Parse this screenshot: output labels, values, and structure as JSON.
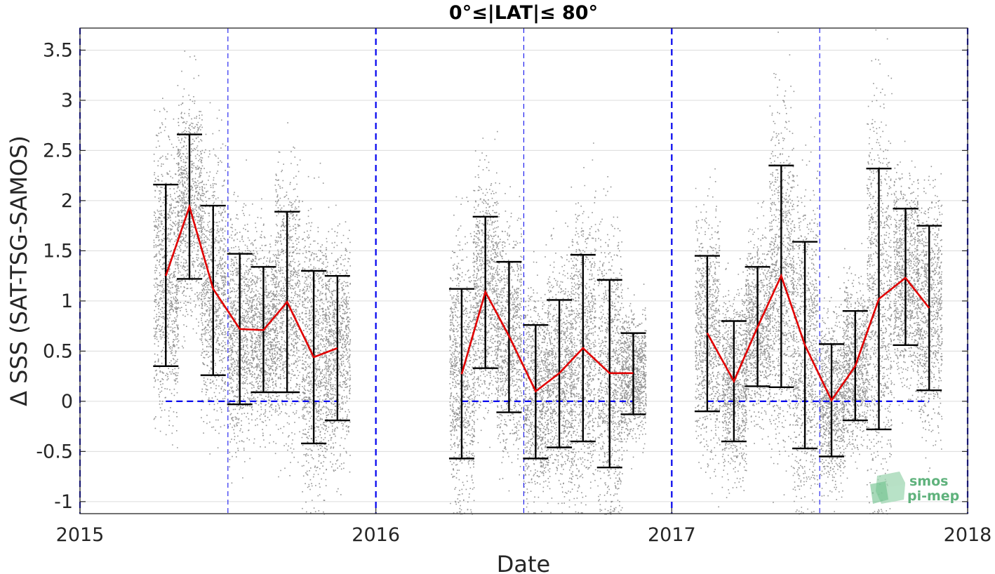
{
  "chart_data": {
    "type": "scatter",
    "title": "0°≤|LAT|≤ 80°",
    "xlabel": "Date",
    "ylabel": "Δ SSS (SAT-TSG-SAMOS)",
    "xlim": [
      2015.0,
      2018.0
    ],
    "ylim": [
      -1.12,
      3.72
    ],
    "x_ticks": [
      2015,
      2016,
      2017,
      2018
    ],
    "x_tick_labels": [
      "2015",
      "2016",
      "2017",
      "2018"
    ],
    "y_ticks": [
      -1,
      -0.5,
      0,
      0.5,
      1,
      1.5,
      2,
      2.5,
      3,
      3.5
    ],
    "y_tick_labels": [
      "-1",
      "-0.5",
      "0",
      "0.5",
      "1",
      "1.5",
      "2",
      "2.5",
      "3",
      "3.5"
    ],
    "grid": true,
    "colors": {
      "scatter": "#808080",
      "mean_line": "#e00000",
      "error_bars": "#000000",
      "zero_line": "#0000ee",
      "year_lines": "#0000ee",
      "grid": "#dcdcdc"
    },
    "year_boundaries": [
      2015.0,
      2016.0,
      2017.0,
      2018.0
    ],
    "mid_year_lines": [
      2015.5,
      2016.5,
      2017.5
    ],
    "zero_line_segments": [
      [
        2015.29,
        2015.87
      ],
      [
        2016.29,
        2016.87
      ],
      [
        2017.12,
        2017.87
      ]
    ],
    "series": [
      {
        "name": "2015",
        "x": [
          2015.29,
          2015.37,
          2015.45,
          2015.54,
          2015.62,
          2015.7,
          2015.79,
          2015.87
        ],
        "mean": [
          1.25,
          1.94,
          1.12,
          0.72,
          0.71,
          0.99,
          0.44,
          0.53
        ],
        "upper": [
          2.16,
          2.66,
          1.95,
          1.47,
          1.34,
          1.89,
          1.3,
          1.25
        ],
        "lower": [
          0.35,
          1.22,
          0.26,
          -0.03,
          0.09,
          0.09,
          -0.42,
          -0.19
        ]
      },
      {
        "name": "2016",
        "x": [
          2016.29,
          2016.37,
          2016.45,
          2016.54,
          2016.62,
          2016.7,
          2016.79,
          2016.87
        ],
        "mean": [
          0.27,
          1.09,
          0.65,
          0.1,
          0.28,
          0.53,
          0.28,
          0.28
        ],
        "upper": [
          1.12,
          1.84,
          1.39,
          0.76,
          1.01,
          1.46,
          1.21,
          0.68
        ],
        "lower": [
          -0.57,
          0.33,
          -0.11,
          -0.57,
          -0.46,
          -0.4,
          -0.66,
          -0.13
        ]
      },
      {
        "name": "2017",
        "x": [
          2017.12,
          2017.21,
          2017.29,
          2017.37,
          2017.45,
          2017.54,
          2017.62,
          2017.7,
          2017.79,
          2017.87
        ],
        "mean": [
          0.68,
          0.2,
          0.74,
          1.25,
          0.56,
          0.01,
          0.35,
          1.02,
          1.23,
          0.93
        ],
        "upper": [
          1.45,
          0.8,
          1.34,
          2.35,
          1.59,
          0.57,
          0.9,
          2.32,
          1.92,
          1.75
        ],
        "lower": [
          -0.1,
          -0.4,
          0.15,
          0.14,
          -0.47,
          -0.55,
          -0.19,
          -0.28,
          0.56,
          0.11
        ]
      }
    ]
  },
  "logo": {
    "line1": "smos",
    "line2": "pi-mep",
    "color": "#5fb27c"
  }
}
